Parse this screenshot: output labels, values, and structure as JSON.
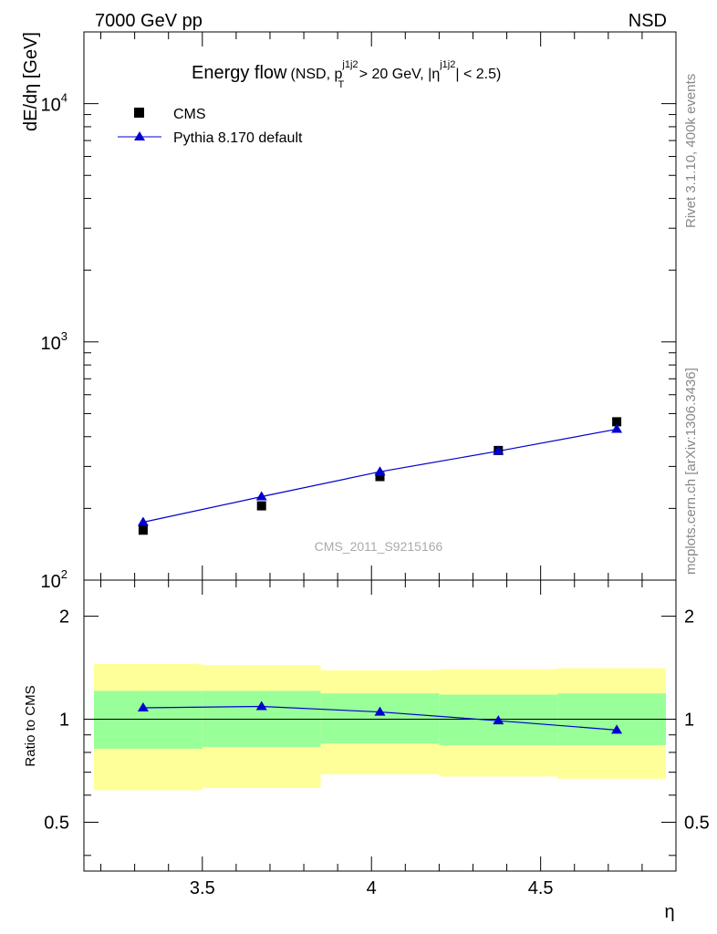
{
  "header": {
    "left": "7000 GeV pp",
    "right": "NSD"
  },
  "side": {
    "rivet": "Rivet 3.1.10,  400k events",
    "mcplots": "mcplots.cern.ch [arXiv:1306.3436]"
  },
  "chart_data": [
    {
      "type": "scatter",
      "title": {
        "main": "Energy flow",
        "suffix_a": "(NSD, p",
        "sup1": "j1j2",
        "sub1": "T",
        "suffix_b": " > 20 GeV, |η",
        "sup2": "j1j2",
        "suffix_c": "| < 2.5)"
      },
      "ylabel": "dE/dη [GeV]",
      "yscale": "log",
      "ylim": [
        100,
        20000
      ],
      "xlim": [
        3.15,
        4.9
      ],
      "yticks": [
        {
          "value": 100,
          "base": "10",
          "exp": "2"
        },
        {
          "value": 1000,
          "base": "10",
          "exp": "3"
        },
        {
          "value": 10000,
          "base": "10",
          "exp": "4"
        }
      ],
      "watermark": "CMS_2011_S9215166",
      "legend": {
        "position": "top-left",
        "entries": [
          "CMS",
          "Pythia 8.170 default"
        ]
      },
      "series": [
        {
          "name": "CMS",
          "marker": "square",
          "color": "#000000",
          "x": [
            3.325,
            3.675,
            4.025,
            4.375,
            4.725
          ],
          "y": [
            162,
            205,
            272,
            350,
            462
          ]
        },
        {
          "name": "Pythia 8.170 default",
          "marker": "triangle",
          "color": "#0000cc",
          "x": [
            3.325,
            3.675,
            4.025,
            4.375,
            4.725
          ],
          "y": [
            175,
            224,
            285,
            348,
            430
          ]
        }
      ]
    },
    {
      "type": "line",
      "ylabel": "Ratio to CMS",
      "xlabel": "η",
      "yscale": "log",
      "ylim": [
        0.36,
        2.55
      ],
      "xlim": [
        3.15,
        4.9
      ],
      "yticks": [
        {
          "value": 0.5,
          "label": "0.5"
        },
        {
          "value": 1,
          "label": "1"
        },
        {
          "value": 2,
          "label": "2"
        }
      ],
      "xticks": [
        {
          "value": 3.5,
          "label": "3.5"
        },
        {
          "value": 4,
          "label": "4"
        },
        {
          "value": 4.5,
          "label": "4.5"
        }
      ],
      "bands": [
        {
          "x0": 3.15,
          "x1": 3.5,
          "inner": [
            0.82,
            1.21
          ],
          "outer": [
            0.62,
            1.45
          ]
        },
        {
          "x0": 3.5,
          "x1": 3.85,
          "inner": [
            0.83,
            1.21
          ],
          "outer": [
            0.63,
            1.44
          ]
        },
        {
          "x0": 3.85,
          "x1": 4.2,
          "inner": [
            0.85,
            1.19
          ],
          "outer": [
            0.69,
            1.39
          ]
        },
        {
          "x0": 4.2,
          "x1": 4.55,
          "inner": [
            0.84,
            1.18
          ],
          "outer": [
            0.68,
            1.4
          ]
        },
        {
          "x0": 4.55,
          "x1": 4.9,
          "inner": [
            0.84,
            1.19
          ],
          "outer": [
            0.67,
            1.41
          ]
        }
      ],
      "series": [
        {
          "name": "Pythia 8.170 default / CMS",
          "color": "#0000cc",
          "x": [
            3.325,
            3.675,
            4.025,
            4.375,
            4.725
          ],
          "y": [
            1.08,
            1.09,
            1.05,
            0.99,
            0.93
          ]
        }
      ],
      "colors": {
        "inner_band": "#99ff99",
        "outer_band": "#ffff99",
        "line": "#0000cc"
      }
    }
  ]
}
